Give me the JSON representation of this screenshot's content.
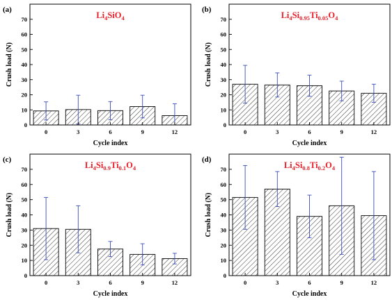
{
  "colors": {
    "title": "#e8212a",
    "error_bar": "#3a4bb5",
    "axis": "#000000",
    "bar_outline": "#000000"
  },
  "chart_data": [
    {
      "type": "bar",
      "panel_label": "(a)",
      "title_parts": [
        [
          "Li",
          ""
        ],
        [
          "4",
          "sub"
        ],
        [
          "SiO",
          ""
        ],
        [
          "4",
          "sub"
        ]
      ],
      "categories": [
        "0",
        "3",
        "6",
        "9",
        "12"
      ],
      "values": [
        9.3,
        10.2,
        9.5,
        12.2,
        6.2
      ],
      "errors": [
        6.0,
        9.5,
        6.0,
        7.5,
        7.8
      ],
      "ylim": [
        0,
        80
      ],
      "yticks": [
        "0",
        "10",
        "20",
        "30",
        "40",
        "50",
        "60",
        "70"
      ],
      "xlabel": "Cycle index",
      "ylabel": "Crush load (N)",
      "bar_fill": "hatched"
    },
    {
      "type": "bar",
      "panel_label": "(b)",
      "title_parts": [
        [
          "Li",
          ""
        ],
        [
          "4",
          "sub"
        ],
        [
          "Si",
          ""
        ],
        [
          "0.95",
          "sub"
        ],
        [
          "Ti",
          ""
        ],
        [
          "0.05",
          "sub"
        ],
        [
          "O",
          ""
        ],
        [
          "4",
          "sub"
        ]
      ],
      "categories": [
        "0",
        "3",
        "6",
        "9",
        "12"
      ],
      "values": [
        27.0,
        26.5,
        26.0,
        22.5,
        21.0
      ],
      "errors": [
        12.5,
        8.0,
        7.0,
        6.5,
        6.0
      ],
      "ylim": [
        0,
        80
      ],
      "yticks": [
        "0",
        "10",
        "20",
        "30",
        "40",
        "50",
        "60",
        "70"
      ],
      "xlabel": "Cycle index",
      "ylabel": "Crush load (N)",
      "bar_fill": "hatched"
    },
    {
      "type": "bar",
      "panel_label": "(c)",
      "title_parts": [
        [
          "Li",
          ""
        ],
        [
          "4",
          "sub"
        ],
        [
          "Si",
          ""
        ],
        [
          "0.9",
          "sub"
        ],
        [
          "Ti",
          ""
        ],
        [
          "0.1",
          "sub"
        ],
        [
          "O",
          ""
        ],
        [
          "4",
          "sub"
        ]
      ],
      "categories": [
        "0",
        "3",
        "6",
        "9",
        "12"
      ],
      "values": [
        31.0,
        30.5,
        17.5,
        14.0,
        11.2
      ],
      "errors": [
        20.5,
        15.5,
        5.0,
        7.0,
        3.5
      ],
      "ylim": [
        0,
        80
      ],
      "yticks": [
        "0",
        "10",
        "20",
        "30",
        "40",
        "50",
        "60",
        "70"
      ],
      "xlabel": "Cycle index",
      "ylabel": "Crush load (N)",
      "bar_fill": "hatched"
    },
    {
      "type": "bar",
      "panel_label": "(d)",
      "title_parts": [
        [
          "Li",
          ""
        ],
        [
          "4",
          "sub"
        ],
        [
          "Si",
          ""
        ],
        [
          "0.8",
          "sub"
        ],
        [
          "Ti",
          ""
        ],
        [
          "0.2",
          "sub"
        ],
        [
          "O",
          ""
        ],
        [
          "4",
          "sub"
        ]
      ],
      "categories": [
        "0",
        "3",
        "6",
        "9",
        "12"
      ],
      "values": [
        51.5,
        57.0,
        39.0,
        46.0,
        39.5
      ],
      "errors": [
        21.0,
        11.5,
        14.0,
        32.0,
        29.0
      ],
      "ylim": [
        0,
        80
      ],
      "yticks": [
        "0",
        "10",
        "20",
        "30",
        "40",
        "50",
        "60",
        "70"
      ],
      "xlabel": "Cycle index",
      "ylabel": "Crush load (N)",
      "bar_fill": "hatched"
    }
  ]
}
